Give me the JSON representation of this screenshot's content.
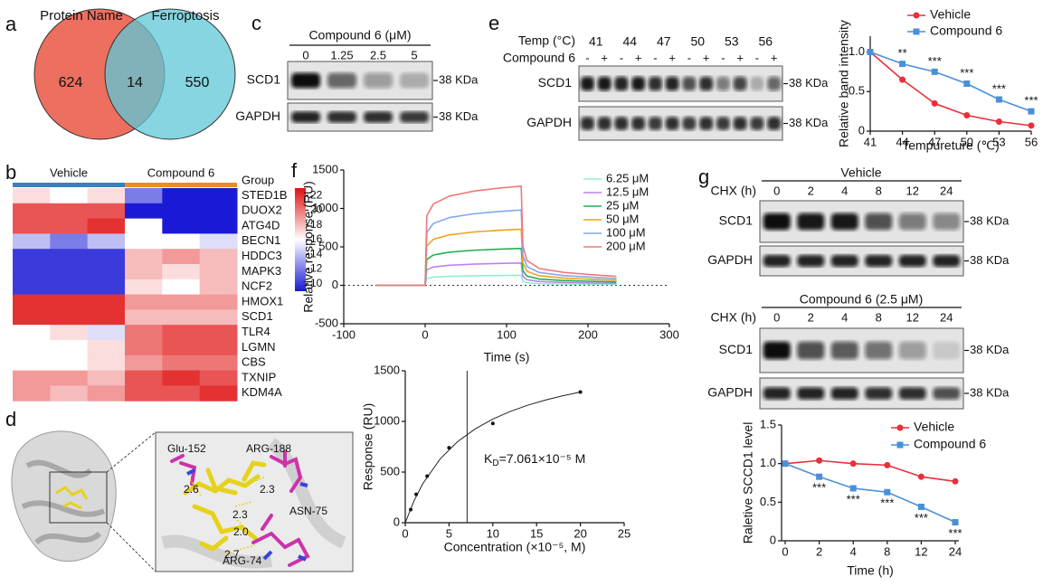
{
  "panel_labels": [
    "a",
    "b",
    "c",
    "d",
    "e",
    "f",
    "g"
  ],
  "venn": {
    "sets": [
      "Protein Name",
      "Ferroptosis"
    ],
    "colors": [
      "#ec6f5f",
      "#5ec7d7"
    ],
    "counts": [
      624,
      14,
      550
    ]
  },
  "blot_c": {
    "title": "Compound 6 (μM)",
    "lanes": [
      "0",
      "1.25",
      "2.5",
      "5"
    ],
    "rows": [
      {
        "label": "SCD1",
        "marker": "38 KDa",
        "bands": [
          1.0,
          0.6,
          0.35,
          0.25
        ]
      },
      {
        "label": "GAPDH",
        "marker": "38 KDa",
        "bands": [
          0.9,
          0.85,
          0.85,
          0.8
        ]
      }
    ]
  },
  "blot_e": {
    "header": "Temp (°C)",
    "temps": [
      "41",
      "44",
      "47",
      "50",
      "53",
      "56"
    ],
    "treatment_label": "Compound 6",
    "treatment": [
      "-",
      "+",
      "-",
      "+",
      "-",
      "+",
      "-",
      "+",
      "-",
      "+",
      "-",
      "+"
    ],
    "rows": [
      {
        "label": "SCD1",
        "marker": "38 KDa",
        "bands": [
          0.95,
          0.95,
          0.9,
          0.95,
          0.85,
          0.9,
          0.7,
          0.85,
          0.5,
          0.75,
          0.25,
          0.6
        ]
      },
      {
        "label": "GAPDH",
        "marker": "38 KDa",
        "bands": [
          0.85,
          0.85,
          0.85,
          0.85,
          0.8,
          0.85,
          0.8,
          0.85,
          0.8,
          0.85,
          0.8,
          0.85
        ]
      }
    ]
  },
  "blot_g": [
    {
      "title": "Vehicle",
      "lane_header": "CHX (h)",
      "lanes": [
        "0",
        "2",
        "4",
        "8",
        "12",
        "24"
      ],
      "rows": [
        {
          "label": "SCD1",
          "marker": "38 KDa",
          "bands": [
            1.0,
            0.95,
            0.95,
            0.7,
            0.5,
            0.45
          ]
        },
        {
          "label": "GAPDH",
          "marker": "38 KDa",
          "bands": [
            0.9,
            0.9,
            0.9,
            0.9,
            0.9,
            0.9
          ]
        }
      ]
    },
    {
      "title": "Compound 6 (2.5 μM)",
      "lane_header": "CHX (h)",
      "lanes": [
        "0",
        "2",
        "4",
        "8",
        "12",
        "24"
      ],
      "rows": [
        {
          "label": "SCD1",
          "marker": "38 KDa",
          "bands": [
            1.0,
            0.7,
            0.65,
            0.55,
            0.35,
            0.12
          ]
        },
        {
          "label": "GAPDH",
          "marker": "38 KDa",
          "bands": [
            0.9,
            0.9,
            0.9,
            0.85,
            0.85,
            0.7
          ]
        }
      ]
    }
  ],
  "docking": {
    "residues": [
      "Glu-152",
      "ARG-188",
      "ASN-75",
      "ARG-74"
    ],
    "distances": [
      "2.6",
      "2.3",
      "2.3",
      "2.0",
      "2.7"
    ]
  },
  "chart_data": [
    {
      "type": "heatmap",
      "rows": [
        "STED1B",
        "DUOX2",
        "ATG4D",
        "BECN1",
        "HDDC3",
        "MAPK3",
        "NCF2",
        "HMOX1",
        "SCD1",
        "TLR4",
        "LGMN",
        "CBS",
        "TXNIP",
        "KDM4A"
      ],
      "values": [
        [
          17,
          16,
          17,
          12,
          9,
          9
        ],
        [
          21,
          21,
          21,
          9,
          9,
          9
        ],
        [
          21,
          21,
          22,
          16,
          9,
          9
        ],
        [
          14,
          12,
          14,
          16,
          16,
          15
        ],
        [
          10,
          10,
          10,
          18,
          19,
          18
        ],
        [
          10,
          10,
          10,
          18,
          17,
          18
        ],
        [
          10,
          10,
          10,
          17,
          16,
          18
        ],
        [
          22,
          22,
          22,
          19,
          19,
          19
        ],
        [
          22,
          22,
          22,
          18,
          18,
          18
        ],
        [
          16,
          17,
          15,
          20,
          21,
          21
        ],
        [
          16,
          16,
          17,
          20,
          21,
          21
        ],
        [
          16,
          16,
          17,
          19,
          20,
          20
        ],
        [
          19,
          19,
          18,
          21,
          22,
          21
        ],
        [
          19,
          18,
          19,
          21,
          21,
          22
        ]
      ],
      "groups": [
        {
          "name": "Vehicle",
          "color": "#3a7fc0",
          "span": 3
        },
        {
          "name": "Compound 6",
          "color": "#f08a24",
          "span": 3
        }
      ],
      "group_label": "Group",
      "highlight_row": 8,
      "highlight_color": "#e02020",
      "colormap": [
        "#1a1ad6",
        "#ffffff",
        "#e01010"
      ],
      "zlim": [
        9,
        23
      ],
      "zticks": [
        10,
        12,
        14,
        16,
        18,
        20,
        22
      ]
    },
    {
      "type": "line",
      "x_label": "Tempureture (℃)",
      "y_label": "Relative band intensity",
      "x": [
        41,
        44,
        47,
        50,
        53,
        56
      ],
      "xlim": [
        41,
        56
      ],
      "xticks": [
        41,
        44,
        47,
        50,
        53,
        56
      ],
      "ylim": [
        0,
        1.2
      ],
      "yticks": [
        0,
        0.5,
        {
          "value": 1,
          "label": "1.0"
        }
      ],
      "series": [
        {
          "name": "Vehicle",
          "color": "#e8303a",
          "marker": "circle",
          "values": [
            1.0,
            0.65,
            0.35,
            0.2,
            0.12,
            0.07
          ]
        },
        {
          "name": "Compound 6",
          "color": "#4a90d9",
          "marker": "square",
          "values": [
            1.0,
            0.85,
            0.75,
            0.6,
            0.4,
            0.25
          ]
        }
      ],
      "significance": [
        null,
        "**",
        "***",
        "***",
        "***",
        "***"
      ],
      "significance_position": "above"
    },
    {
      "type": "line",
      "x_label": "Time (s)",
      "y_label": "Relative response (RU)",
      "x": [
        -60,
        0,
        2,
        10,
        30,
        60,
        90,
        118,
        120,
        125,
        140,
        170,
        200,
        235
      ],
      "xlim": [
        -100,
        300
      ],
      "xticks": [
        -100,
        0,
        100,
        200,
        300
      ],
      "ylim": [
        -500,
        1500
      ],
      "yticks": [
        -500,
        0,
        500,
        1000,
        1500
      ],
      "zero_line": true,
      "series": [
        {
          "name": "6.25 μM",
          "color": "#8ff0d0",
          "values": [
            0,
            0,
            91,
            107,
            117,
            124,
            127,
            130,
            52,
            33,
            22,
            17,
            14,
            12
          ]
        },
        {
          "name": "12.5 μM",
          "color": "#c080f0",
          "values": [
            0,
            0,
            203,
            238,
            261,
            276,
            284,
            290,
            116,
            73,
            49,
            38,
            32,
            26
          ]
        },
        {
          "name": "25 μM",
          "color": "#20b050",
          "values": [
            0,
            0,
            336,
            394,
            432,
            456,
            470,
            480,
            192,
            120,
            82,
            62,
            53,
            43
          ]
        },
        {
          "name": "50 μM",
          "color": "#f0a020",
          "values": [
            0,
            0,
            511,
            599,
            657,
            694,
            715,
            730,
            292,
            183,
            124,
            95,
            80,
            66
          ]
        },
        {
          "name": "100 μM",
          "color": "#80a8f0",
          "values": [
            0,
            0,
            686,
            804,
            882,
            931,
            960,
            980,
            392,
            245,
            167,
            127,
            108,
            88
          ]
        },
        {
          "name": "200 μM",
          "color": "#f07878",
          "values": [
            0,
            0,
            903,
            1058,
            1161,
            1226,
            1264,
            1290,
            516,
            323,
            219,
            168,
            142,
            116
          ]
        }
      ]
    },
    {
      "type": "scatter",
      "x_label": "Concentration (×10⁻⁵, M)",
      "y_label": "Response (RU)",
      "x": [
        0.625,
        1.25,
        2.5,
        5,
        10,
        20
      ],
      "values": [
        130,
        280,
        460,
        740,
        980,
        1290
      ],
      "xlim": [
        0,
        25
      ],
      "xticks": [
        0,
        5,
        10,
        15,
        20,
        25
      ],
      "ylim": [
        0,
        1500
      ],
      "yticks": [
        0,
        500,
        1000,
        1500
      ],
      "fit": {
        "x": [
          0,
          1,
          2,
          4,
          6,
          8,
          10,
          12,
          14,
          16,
          18,
          20
        ],
        "values": [
          0,
          216,
          385,
          631,
          802,
          927,
          1023,
          1099,
          1160,
          1211,
          1253,
          1290
        ]
      },
      "kd_line": 7.061,
      "annotation": [
        "K",
        "D",
        "=7.061×10⁻⁵ M"
      ]
    },
    {
      "type": "line",
      "x_label": "Time (h)",
      "y_label": "Raletive SCCD1 level",
      "categories": [
        "0",
        "2",
        "4",
        "8",
        "12",
        "24"
      ],
      "ylim": [
        0,
        1.5
      ],
      "yticks": [
        0,
        0.5,
        {
          "value": 1,
          "label": "1.0"
        },
        1.5
      ],
      "series": [
        {
          "name": "Vehicle",
          "color": "#e8303a",
          "marker": "circle",
          "values": [
            1.0,
            1.04,
            1.0,
            0.98,
            0.83,
            0.77
          ]
        },
        {
          "name": "Compound 6",
          "color": "#4a90d9",
          "marker": "square",
          "values": [
            1.0,
            0.83,
            0.68,
            0.63,
            0.44,
            0.24
          ]
        }
      ],
      "significance": [
        null,
        "***",
        "***",
        "***",
        "***",
        "***"
      ],
      "significance_position": "below"
    }
  ]
}
